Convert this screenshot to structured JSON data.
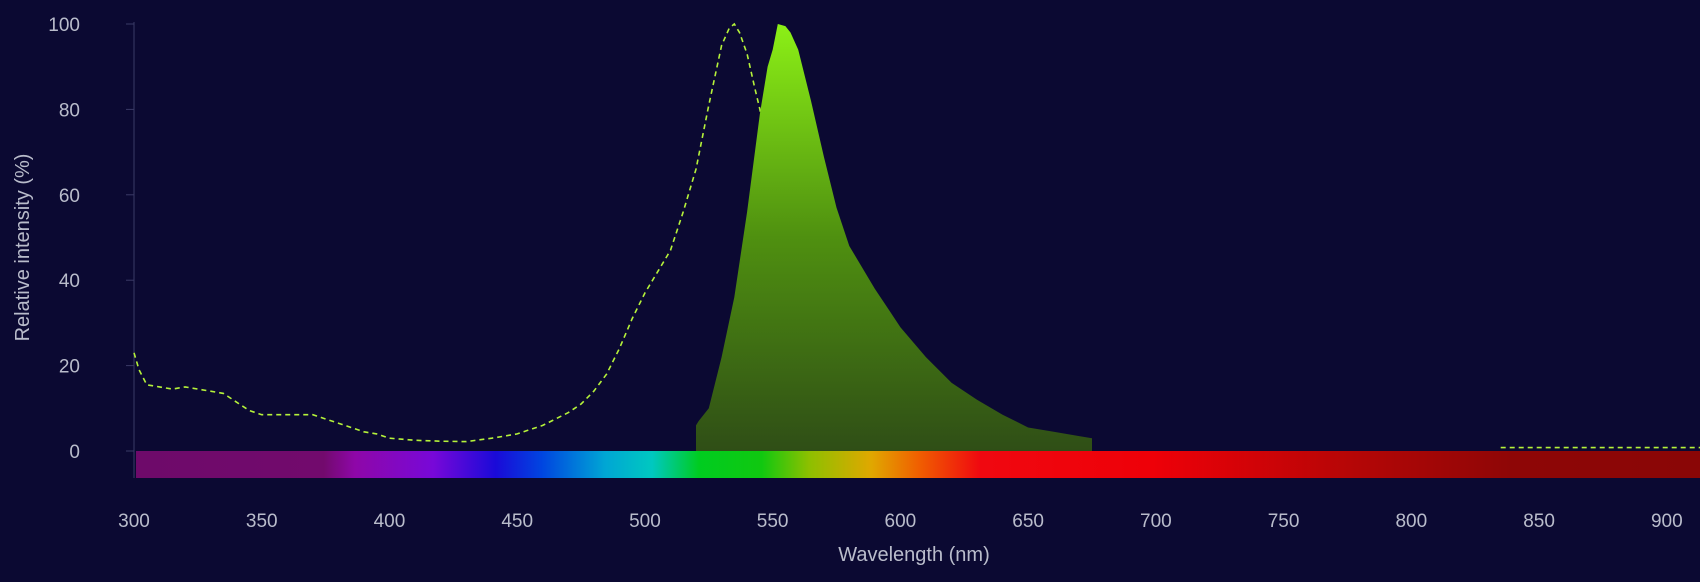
{
  "chart_data": {
    "type": "area",
    "xlabel": "Wavelength (nm)",
    "ylabel": "Relative intensity (%)",
    "xlim": [
      300,
      913
    ],
    "ylim": [
      0,
      100
    ],
    "x_ticks": [
      300,
      350,
      400,
      450,
      500,
      550,
      600,
      650,
      700,
      750,
      800,
      850,
      900
    ],
    "y_ticks": [
      0,
      20,
      40,
      60,
      80,
      100
    ],
    "grid": false,
    "legend": "none",
    "spectrum_bar": true,
    "series": [
      {
        "style": "dashed-line",
        "color": "#b5f23a",
        "x": [
          300,
          302,
          305,
          310,
          315,
          320,
          325,
          330,
          335,
          340,
          345,
          350,
          355,
          360,
          365,
          370,
          375,
          380,
          385,
          390,
          395,
          400,
          410,
          420,
          430,
          440,
          445,
          450,
          455,
          460,
          465,
          470,
          475,
          480,
          485,
          490,
          495,
          500,
          505,
          510,
          515,
          520,
          525,
          530,
          533,
          535,
          537,
          540,
          543,
          545,
          548,
          550,
          555,
          560,
          565,
          570,
          575,
          580,
          585,
          590,
          600,
          610,
          620,
          640,
          660,
          675,
          680,
          700,
          750,
          800,
          830,
          835,
          880,
          913
        ],
        "y": [
          23,
          19,
          15.5,
          15,
          14.5,
          15,
          14.5,
          14,
          13.5,
          11.5,
          9.5,
          8.5,
          8.5,
          8.5,
          8.5,
          8.5,
          7.5,
          6.5,
          5.5,
          4.5,
          4,
          3,
          2.5,
          2.3,
          2.2,
          3,
          3.5,
          4,
          5,
          6,
          7.5,
          9,
          11,
          14,
          18,
          24,
          31,
          37,
          42,
          47,
          56,
          66,
          81,
          95,
          99,
          100,
          98,
          93,
          85,
          80,
          70,
          60,
          37,
          17,
          8,
          6,
          4,
          2.3,
          2,
          1.8,
          1.5,
          1,
          1,
          1,
          1,
          1,
          null,
          null,
          null,
          null,
          null,
          0.8,
          0.8,
          0.8
        ]
      },
      {
        "style": "filled-area",
        "color": "#84e81a",
        "x": [
          520,
          521,
          525,
          530,
          535,
          540,
          545,
          548,
          550,
          552,
          555,
          557,
          560,
          565,
          570,
          575,
          580,
          590,
          600,
          610,
          620,
          630,
          640,
          650,
          660,
          670,
          675
        ],
        "y": [
          6,
          7,
          10,
          22,
          36,
          56,
          79,
          90,
          94,
          100,
          99.5,
          98,
          94,
          82,
          69,
          57,
          48,
          38,
          29,
          22,
          16,
          12,
          8.5,
          5.5,
          4.5,
          3.5,
          3
        ]
      }
    ]
  }
}
